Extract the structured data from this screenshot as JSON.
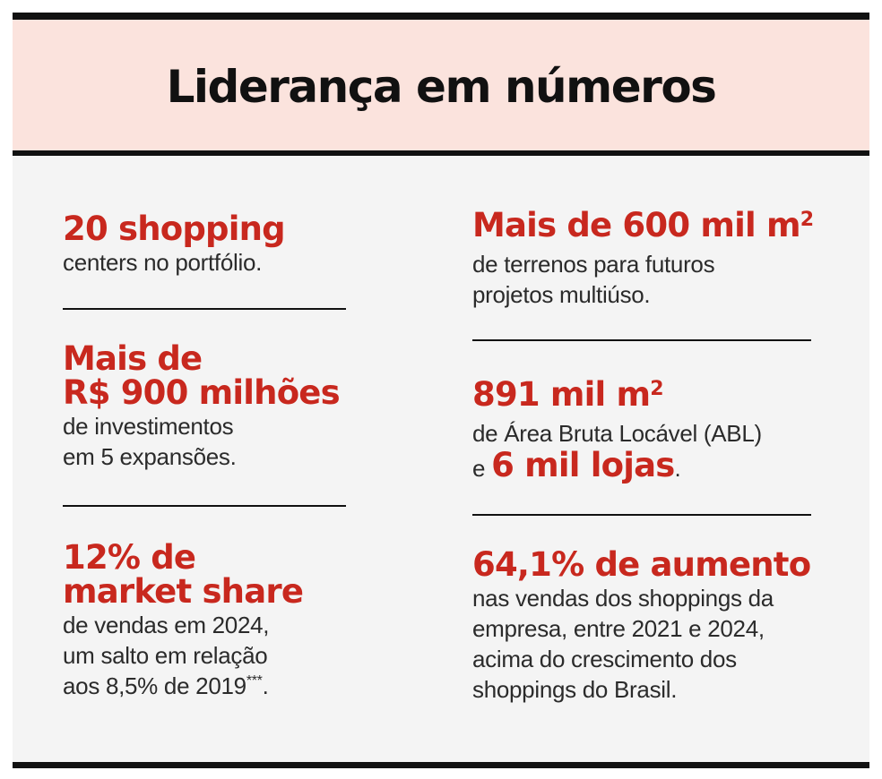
{
  "title": "Liderança em números",
  "stats": {
    "s1": {
      "headline": "20 shopping",
      "body": [
        "centers no portfólio."
      ]
    },
    "s2": {
      "headline": [
        "Mais de",
        "R$ 900 milhões"
      ],
      "body": [
        "de investimentos",
        "em 5 expansões."
      ]
    },
    "s3": {
      "headline": [
        "12% de",
        "market share"
      ],
      "body": [
        "de vendas em 2024,",
        "um salto em relação",
        "aos 8,5% de 2019"
      ],
      "footnote_marker": "***",
      "body_end": "."
    },
    "s4": {
      "headline": "Mais de 600 mil m",
      "superscript": "2",
      "body": [
        "de terrenos para futuros",
        "projetos multiúso."
      ]
    },
    "s5": {
      "headline": "891 mil m",
      "superscript": "2",
      "body": [
        "de Área Bruta Locável (ABL)"
      ],
      "tail_prefix": "e",
      "tail_highlight": "6 mil lojas",
      "tail_end": "."
    },
    "s6": {
      "headline": "64,1% de aumento",
      "body": [
        "nas vendas dos shoppings da",
        "empresa, entre 2021 e 2024,",
        "acima do crescimento dos",
        "shoppings do Brasil."
      ]
    }
  },
  "colors": {
    "accent_red": "#c8281e",
    "header_bg": "#fbe3dd",
    "panel_bg": "#f4f4f4",
    "rule": "#111111"
  }
}
